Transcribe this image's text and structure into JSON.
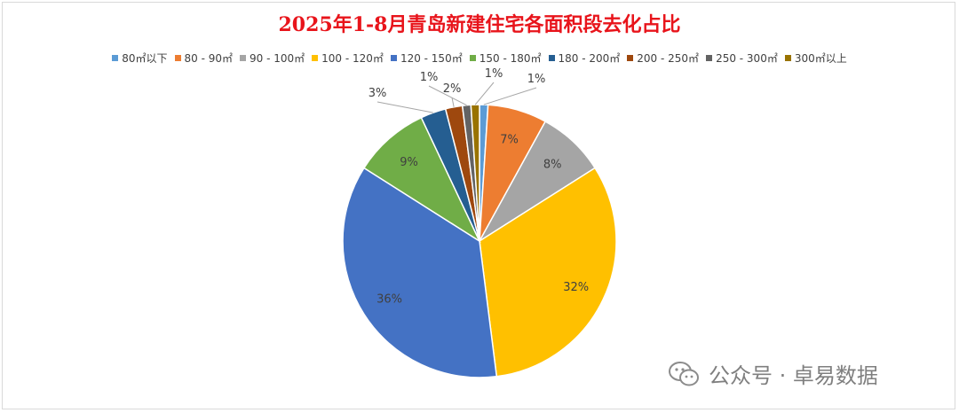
{
  "chart_data": {
    "type": "pie",
    "title": "2025年1-8月青岛新建住宅各面积段去化占比",
    "legend_position": "top",
    "slices": [
      {
        "label": "80㎡以下",
        "value": 1,
        "display": "1%",
        "color": "#5b9bd5"
      },
      {
        "label": "80 - 90㎡",
        "value": 7,
        "display": "7%",
        "color": "#ed7d31"
      },
      {
        "label": "90 - 100㎡",
        "value": 8,
        "display": "8%",
        "color": "#a5a5a5"
      },
      {
        "label": "100 - 120㎡",
        "value": 32,
        "display": "32%",
        "color": "#ffc000"
      },
      {
        "label": "120 - 150㎡",
        "value": 36,
        "display": "36%",
        "color": "#4472c4"
      },
      {
        "label": "150 - 180㎡",
        "value": 9,
        "display": "9%",
        "color": "#70ad47"
      },
      {
        "label": "180 - 200㎡",
        "value": 3,
        "display": "3%",
        "color": "#255e91"
      },
      {
        "label": "200 - 250㎡",
        "value": 2,
        "display": "2%",
        "color": "#9e480e"
      },
      {
        "label": "250 - 300㎡",
        "value": 1,
        "display": "1%",
        "color": "#636363"
      },
      {
        "label": "300㎡以上",
        "value": 1,
        "display": "1%",
        "color": "#997300"
      }
    ]
  },
  "watermark": {
    "text": "公众号 · 卓易数据",
    "icon": "wechat-icon"
  }
}
